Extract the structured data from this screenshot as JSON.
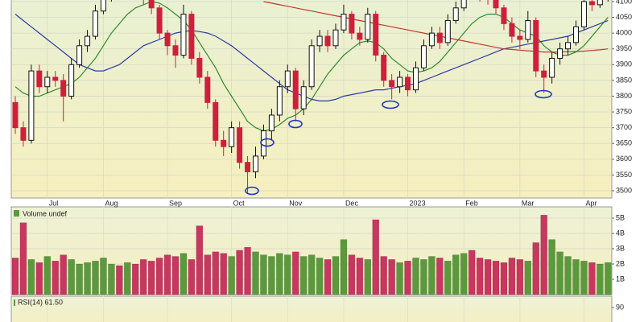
{
  "chart_data": [
    {
      "type": "candlestick",
      "categories": [
        null,
        null,
        null,
        null,
        "Jul",
        null,
        null,
        null,
        null,
        null,
        null,
        "Aug",
        null,
        null,
        null,
        null,
        null,
        null,
        null,
        "Sep",
        null,
        null,
        null,
        null,
        null,
        null,
        null,
        "Oct",
        null,
        null,
        null,
        null,
        null,
        null,
        "Nov",
        null,
        null,
        null,
        null,
        null,
        null,
        "Dec",
        null,
        null,
        null,
        null,
        null,
        null,
        null,
        "2023",
        null,
        null,
        null,
        null,
        null,
        null,
        "Feb",
        null,
        null,
        null,
        null,
        null,
        null,
        "Mar",
        null,
        null,
        null,
        null,
        null,
        null,
        null,
        "Apr",
        null,
        null,
        null
      ],
      "open": [
        3780,
        3700,
        3660,
        3880,
        3830,
        3860,
        3850,
        3800,
        3900,
        3960,
        3990,
        4070,
        4120,
        4140,
        4130,
        4170,
        4150,
        4110,
        4080,
        4000,
        3960,
        3930,
        4060,
        3920,
        3860,
        3780,
        3660,
        3640,
        3700,
        3590,
        3560,
        3610,
        3690,
        3740,
        3830,
        3880,
        3760,
        3830,
        3960,
        3990,
        3960,
        4010,
        4060,
        4000,
        3980,
        4060,
        3930,
        3850,
        3830,
        3860,
        3820,
        3890,
        3960,
        4000,
        3970,
        4040,
        4080,
        4150,
        4140,
        4120,
        4110,
        4080,
        4030,
        3990,
        3980,
        4040,
        3880,
        3860,
        3920,
        3950,
        3970,
        4020,
        4100,
        4090,
        4110
      ],
      "high": [
        3800,
        3720,
        3900,
        3900,
        3880,
        3880,
        3870,
        3920,
        3980,
        4010,
        4090,
        4140,
        4160,
        4160,
        4190,
        4190,
        4160,
        4120,
        4090,
        4010,
        3980,
        4090,
        4070,
        3940,
        3880,
        3790,
        3690,
        3720,
        3720,
        3610,
        3640,
        3710,
        3760,
        3850,
        3900,
        3890,
        3850,
        3980,
        4010,
        4010,
        4030,
        4090,
        4070,
        4020,
        4080,
        4070,
        3940,
        3870,
        3880,
        3870,
        3910,
        3980,
        4020,
        4020,
        4060,
        4100,
        4180,
        4170,
        4160,
        4140,
        4120,
        4090,
        4050,
        4010,
        4070,
        4050,
        3900,
        3940,
        3970,
        3990,
        4040,
        4120,
        4120,
        4130,
        4140
      ],
      "low": [
        3680,
        3640,
        3650,
        3810,
        3810,
        3830,
        3720,
        3790,
        3890,
        3940,
        3980,
        4060,
        4100,
        4110,
        4120,
        4130,
        4090,
        4060,
        3980,
        3930,
        3890,
        3920,
        3900,
        3840,
        3760,
        3640,
        3610,
        3620,
        3570,
        3491,
        3540,
        3600,
        3660,
        3720,
        3810,
        3720,
        3740,
        3820,
        3940,
        3940,
        3950,
        4000,
        3980,
        3960,
        3970,
        3910,
        3830,
        3790,
        3810,
        3800,
        3810,
        3880,
        3950,
        3950,
        3960,
        4030,
        4070,
        4120,
        4100,
        4090,
        4060,
        4010,
        3970,
        3950,
        3970,
        3860,
        3810,
        3840,
        3900,
        3930,
        3960,
        4010,
        4070,
        4080,
        4100
      ],
      "close": [
        3700,
        3660,
        3880,
        3830,
        3860,
        3850,
        3800,
        3900,
        3960,
        3990,
        4070,
        4120,
        4140,
        4130,
        4170,
        4150,
        4110,
        4080,
        4000,
        3960,
        3930,
        4060,
        3920,
        3860,
        3780,
        3660,
        3640,
        3700,
        3590,
        3560,
        3610,
        3690,
        3740,
        3830,
        3880,
        3760,
        3830,
        3960,
        3990,
        3960,
        4010,
        4060,
        4000,
        3980,
        4060,
        3930,
        3850,
        3830,
        3860,
        3820,
        3890,
        3960,
        4000,
        3970,
        4040,
        4080,
        4150,
        4140,
        4120,
        4110,
        4080,
        4030,
        3990,
        3980,
        4040,
        3880,
        3860,
        3920,
        3950,
        3970,
        4020,
        4100,
        4090,
        4110,
        4120
      ],
      "up_color": "#111111",
      "down_color": "#d01f3c",
      "series": [
        {
          "color": "#2e8b2e",
          "values": [
            3830,
            3810,
            3800,
            3800,
            3810,
            3820,
            3830,
            3840,
            3860,
            3890,
            3920,
            3960,
            4000,
            4030,
            4060,
            4080,
            4090,
            4100,
            4095,
            4080,
            4060,
            4040,
            4010,
            3970,
            3930,
            3890,
            3840,
            3800,
            3760,
            3720,
            3700,
            3690,
            3695,
            3710,
            3730,
            3740,
            3760,
            3790,
            3830,
            3870,
            3900,
            3930,
            3950,
            3970,
            3975,
            3970,
            3950,
            3920,
            3900,
            3880,
            3875,
            3880,
            3890,
            3910,
            3940,
            3970,
            4000,
            4030,
            4050,
            4060,
            4060,
            4050,
            4030,
            4010,
            4000,
            3990,
            3960,
            3940,
            3930,
            3930,
            3940,
            3960,
            3990,
            4020,
            4050
          ]
        },
        {
          "color": "#2b3aa8",
          "values": [
            4060,
            4040,
            4020,
            4000,
            3980,
            3960,
            3940,
            3920,
            3900,
            3890,
            3880,
            3880,
            3890,
            3900,
            3920,
            3940,
            3960,
            3970,
            3980,
            3990,
            4000,
            4005,
            4008,
            4005,
            4000,
            3990,
            3975,
            3960,
            3940,
            3920,
            3900,
            3880,
            3860,
            3840,
            3820,
            3810,
            3800,
            3790,
            3785,
            3785,
            3790,
            3800,
            3805,
            3810,
            3815,
            3820,
            3820,
            3825,
            3830,
            3835,
            3840,
            3850,
            3860,
            3870,
            3880,
            3890,
            3900,
            3910,
            3920,
            3930,
            3940,
            3950,
            3955,
            3960,
            3965,
            3970,
            3975,
            3980,
            3985,
            3990,
            4000,
            4010,
            4020,
            4030,
            4040
          ]
        },
        {
          "color": "#c0392b",
          "values": [
            null,
            null,
            null,
            null,
            null,
            null,
            null,
            null,
            null,
            null,
            null,
            null,
            null,
            null,
            null,
            null,
            null,
            null,
            null,
            null,
            null,
            null,
            null,
            null,
            null,
            null,
            null,
            null,
            null,
            null,
            null,
            4100,
            4095,
            4090,
            4085,
            4080,
            4075,
            4070,
            4065,
            4060,
            4055,
            4050,
            4045,
            4040,
            4035,
            4030,
            4025,
            4020,
            4015,
            4010,
            4005,
            4000,
            3995,
            3990,
            3985,
            3980,
            3975,
            3970,
            3965,
            3960,
            3955,
            3950,
            3948,
            3946,
            3944,
            3942,
            3940,
            3940,
            3940,
            3941,
            3942,
            3943,
            3945,
            3947,
            3950
          ]
        }
      ],
      "ylim": [
        3477,
        4105
      ],
      "yticks": [
        3500,
        3550,
        3600,
        3650,
        3700,
        3750,
        3800,
        3850,
        3900,
        3950,
        4000,
        4050,
        4100
      ],
      "grid": true
    },
    {
      "type": "bar",
      "title": "Volume undef",
      "values": [
        2.4,
        4.7,
        2.3,
        2.1,
        2.5,
        2.2,
        2.6,
        2.3,
        2.0,
        2.1,
        2.2,
        2.4,
        2.0,
        1.9,
        2.1,
        2.0,
        2.3,
        2.2,
        2.4,
        2.6,
        2.5,
        2.7,
        2.3,
        4.5,
        2.6,
        2.8,
        2.7,
        2.5,
        2.9,
        3.1,
        2.8,
        2.6,
        2.5,
        2.7,
        2.6,
        2.8,
        2.5,
        2.6,
        2.4,
        2.3,
        2.5,
        3.6,
        2.6,
        2.4,
        2.3,
        4.9,
        2.5,
        2.3,
        2.1,
        2.2,
        2.4,
        2.3,
        2.5,
        2.4,
        2.2,
        2.6,
        2.7,
        2.9,
        2.4,
        2.3,
        2.2,
        2.1,
        2.4,
        2.3,
        2.2,
        3.4,
        5.2,
        3.6,
        2.8,
        2.5,
        2.3,
        2.2,
        2.1,
        2.0,
        2.1
      ],
      "up_color": "#5b9a3c",
      "down_color": "#c9365f",
      "ylim": [
        0,
        5.5
      ],
      "yticks": [
        {
          "value": 1,
          "label": "1B"
        },
        {
          "value": 2,
          "label": "2B"
        },
        {
          "value": 3,
          "label": "3B"
        },
        {
          "value": 4,
          "label": "4B"
        },
        {
          "value": 5,
          "label": "5B"
        }
      ],
      "grid": true
    },
    {
      "type": "line",
      "title": "RSI(14) 61.50",
      "ylim": [
        0,
        100
      ],
      "yticks": [
        90
      ],
      "grid": false
    }
  ]
}
